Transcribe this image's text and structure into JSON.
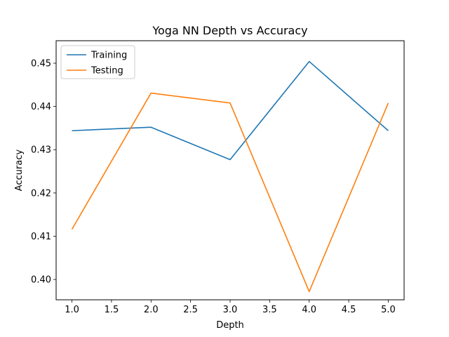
{
  "chart_data": {
    "type": "line",
    "title": "Yoga NN Depth vs Accuracy",
    "xlabel": "Depth",
    "ylabel": "Accuracy",
    "x": [
      1.0,
      2.0,
      3.0,
      4.0,
      5.0
    ],
    "xlim": [
      0.8,
      5.2
    ],
    "ylim": [
      0.3953,
      0.4552
    ],
    "xticks": [
      1.0,
      1.5,
      2.0,
      2.5,
      3.0,
      3.5,
      4.0,
      4.5,
      5.0
    ],
    "xtick_labels": [
      "1.0",
      "1.5",
      "2.0",
      "2.5",
      "3.0",
      "3.5",
      "4.0",
      "4.5",
      "5.0"
    ],
    "yticks": [
      0.4,
      0.41,
      0.42,
      0.43,
      0.44,
      0.45
    ],
    "ytick_labels": [
      "0.40",
      "0.41",
      "0.42",
      "0.43",
      "0.44",
      "0.45"
    ],
    "grid": false,
    "legend_position": "top-left",
    "series": [
      {
        "name": "Training",
        "color": "#1f77b4",
        "values": [
          0.4344,
          0.4352,
          0.4277,
          0.4504,
          0.4344
        ]
      },
      {
        "name": "Testing",
        "color": "#ff7f0e",
        "values": [
          0.4116,
          0.4431,
          0.4408,
          0.3972,
          0.4408
        ]
      }
    ]
  }
}
